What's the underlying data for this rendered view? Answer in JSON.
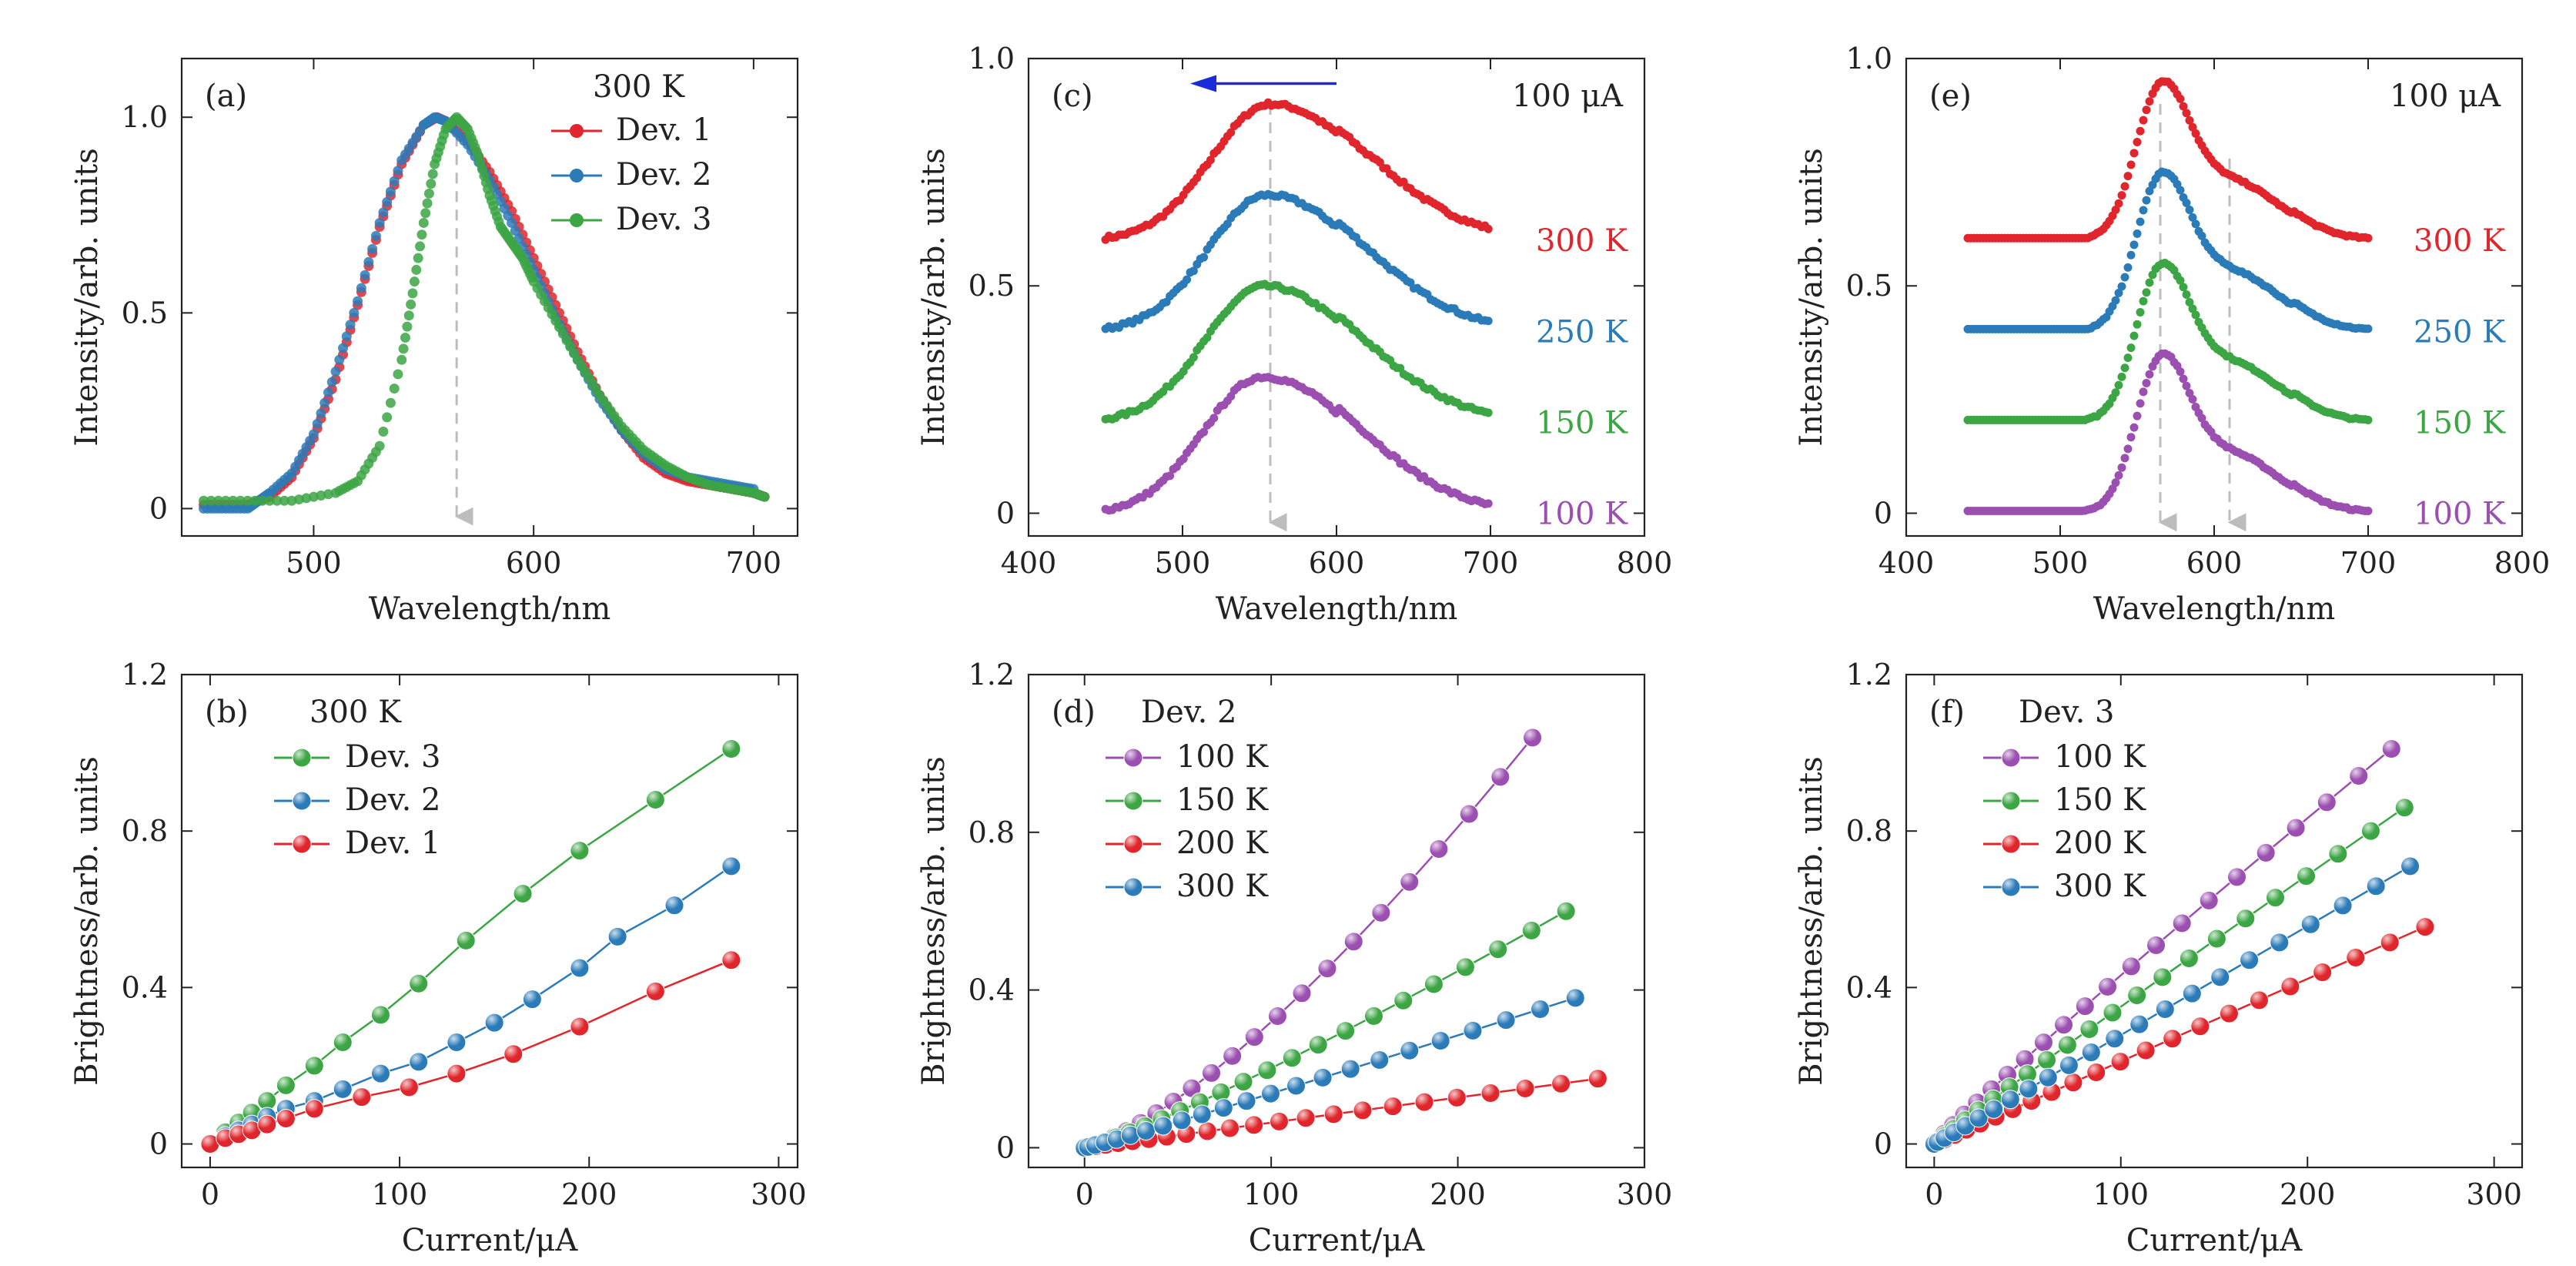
{
  "chart_data": [
    {
      "panel": "(a)",
      "type": "line",
      "xlabel": "Wavelength/nm",
      "ylabel": "Intensity/arb. units",
      "xlim": [
        440,
        720
      ],
      "ylim": [
        -0.07,
        1.15
      ],
      "xticks": [
        "500",
        "600",
        "700"
      ],
      "yticks": [
        "0",
        "0.5",
        "1.0"
      ],
      "legend_title": "300 K",
      "legend_position": "top-right",
      "annotations": [
        "dashed gray arrow at peak wavelength ≈ 565 nm"
      ],
      "series": [
        {
          "name": "Dev. 1",
          "color": "#e0262c",
          "x": [
            450,
            470,
            480,
            490,
            500,
            510,
            520,
            530,
            540,
            550,
            556,
            560,
            570,
            580,
            590,
            600,
            610,
            620,
            630,
            640,
            650,
            660,
            670,
            680,
            690,
            700,
            705
          ],
          "y": [
            0.01,
            0.01,
            0.03,
            0.08,
            0.18,
            0.33,
            0.52,
            0.72,
            0.88,
            0.98,
            1.0,
            0.99,
            0.94,
            0.86,
            0.76,
            0.64,
            0.52,
            0.4,
            0.29,
            0.2,
            0.13,
            0.09,
            0.07,
            0.06,
            0.05,
            0.04,
            0.03
          ]
        },
        {
          "name": "Dev. 2",
          "color": "#2b7bb9",
          "x": [
            450,
            460,
            470,
            475,
            480,
            490,
            500,
            510,
            520,
            530,
            540,
            550,
            555,
            560,
            570,
            580,
            590,
            600,
            610,
            620,
            630,
            640,
            650,
            660,
            670,
            680,
            690,
            700
          ],
          "y": [
            0.0,
            0.0,
            0.0,
            0.02,
            0.04,
            0.09,
            0.19,
            0.35,
            0.53,
            0.73,
            0.89,
            0.98,
            1.0,
            0.99,
            0.93,
            0.84,
            0.73,
            0.61,
            0.49,
            0.38,
            0.28,
            0.2,
            0.14,
            0.1,
            0.08,
            0.07,
            0.06,
            0.05
          ]
        },
        {
          "name": "Dev. 3",
          "color": "#3ca544",
          "x": [
            450,
            470,
            490,
            510,
            520,
            530,
            540,
            545,
            550,
            555,
            560,
            565,
            570,
            575,
            580,
            585,
            590,
            595,
            600,
            610,
            620,
            630,
            640,
            650,
            660,
            670,
            680,
            690,
            700,
            705
          ],
          "y": [
            0.02,
            0.02,
            0.02,
            0.04,
            0.07,
            0.16,
            0.38,
            0.55,
            0.73,
            0.88,
            0.97,
            1.0,
            0.97,
            0.9,
            0.8,
            0.72,
            0.68,
            0.64,
            0.58,
            0.48,
            0.38,
            0.29,
            0.21,
            0.15,
            0.11,
            0.08,
            0.06,
            0.05,
            0.04,
            0.03
          ]
        }
      ]
    },
    {
      "panel": "(c)",
      "type": "line",
      "xlabel": "Wavelength/nm",
      "ylabel": "Intensity/arb. units",
      "xlim": [
        400,
        800
      ],
      "ylim": [
        -0.05,
        1.0
      ],
      "xticks": [
        "400",
        "500",
        "600",
        "700",
        "800"
      ],
      "yticks": [
        "0",
        "0.5",
        "1.0"
      ],
      "corner_label": "100 μA",
      "annotations": [
        "blue arrow pointing left at top",
        "dashed gray arrow at peak ≈ 557 nm"
      ],
      "series": [
        {
          "name": "300 K",
          "color": "#e0262c",
          "offset": 0.6,
          "peak": 0.3,
          "center": 557
        },
        {
          "name": "250 K",
          "color": "#2b7bb9",
          "offset": 0.4,
          "peak": 0.3,
          "center": 555
        },
        {
          "name": "150 K",
          "color": "#3ca544",
          "offset": 0.2,
          "peak": 0.3,
          "center": 553
        },
        {
          "name": "100 K",
          "color": "#9b4fb0",
          "offset": 0.0,
          "peak": 0.3,
          "center": 552
        }
      ]
    },
    {
      "panel": "(e)",
      "type": "line",
      "xlabel": "Wavelength/nm",
      "ylabel": "Intensity/arb. units",
      "xlim": [
        400,
        800
      ],
      "ylim": [
        -0.05,
        1.0
      ],
      "xticks": [
        "400",
        "500",
        "600",
        "700",
        "800"
      ],
      "yticks": [
        "0",
        "0.5",
        "1.0"
      ],
      "corner_label": "100 μA",
      "annotations": [
        "dashed gray arrows at ≈ 565 nm and ≈ 610 nm"
      ],
      "series": [
        {
          "name": "300 K",
          "color": "#e0262c",
          "offset": 0.6
        },
        {
          "name": "250 K",
          "color": "#2b7bb9",
          "offset": 0.4
        },
        {
          "name": "150 K",
          "color": "#3ca544",
          "offset": 0.2
        },
        {
          "name": "100 K",
          "color": "#9b4fb0",
          "offset": 0.0
        }
      ]
    },
    {
      "panel": "(b)",
      "type": "scatter",
      "xlabel": "Current/μA",
      "ylabel": "Brightness/arb. units",
      "xlim": [
        -15,
        310
      ],
      "ylim": [
        -0.06,
        1.2
      ],
      "xticks": [
        "0",
        "100",
        "200",
        "300"
      ],
      "yticks": [
        "0",
        "0.4",
        "0.8",
        "1.2"
      ],
      "legend_title": "300 K",
      "legend_position": "top-left",
      "series": [
        {
          "name": "Dev. 3",
          "color": "#3ca544",
          "x": [
            0,
            8,
            15,
            22,
            30,
            40,
            55,
            70,
            90,
            110,
            135,
            165,
            195,
            235,
            275
          ],
          "y": [
            0,
            0.03,
            0.055,
            0.08,
            0.11,
            0.15,
            0.2,
            0.26,
            0.33,
            0.41,
            0.52,
            0.64,
            0.75,
            0.88,
            1.01
          ]
        },
        {
          "name": "Dev. 2",
          "color": "#2b7bb9",
          "x": [
            0,
            8,
            15,
            22,
            30,
            40,
            55,
            70,
            90,
            110,
            130,
            150,
            170,
            195,
            215,
            245,
            275
          ],
          "y": [
            0,
            0.02,
            0.035,
            0.05,
            0.07,
            0.09,
            0.11,
            0.14,
            0.18,
            0.21,
            0.26,
            0.31,
            0.37,
            0.45,
            0.53,
            0.61,
            0.71
          ]
        },
        {
          "name": "Dev. 1",
          "color": "#e0262c",
          "x": [
            0,
            8,
            15,
            22,
            30,
            40,
            55,
            80,
            105,
            130,
            160,
            195,
            235,
            275
          ],
          "y": [
            0,
            0.015,
            0.025,
            0.035,
            0.05,
            0.065,
            0.09,
            0.12,
            0.145,
            0.18,
            0.23,
            0.3,
            0.39,
            0.47
          ]
        }
      ]
    },
    {
      "panel": "(d)",
      "type": "scatter",
      "xlabel": "Current/μA",
      "ylabel": "Brightness/arb. units",
      "xlim": [
        -30,
        300
      ],
      "ylim": [
        -0.05,
        1.2
      ],
      "xticks": [
        "0",
        "100",
        "200",
        "300"
      ],
      "yticks": [
        "0",
        "0.4",
        "0.8",
        "1.2"
      ],
      "legend_title": "Dev. 2",
      "legend_position": "top-left",
      "series": [
        {
          "name": "100 K",
          "color": "#9b4fb0",
          "kind": "power",
          "xmax": 240,
          "ymax": 1.04,
          "exp": 1.35
        },
        {
          "name": "150 K",
          "color": "#3ca544",
          "kind": "power",
          "xmax": 258,
          "ymax": 0.6,
          "exp": 1.15
        },
        {
          "name": "200 K",
          "color": "#e0262c",
          "kind": "power",
          "xmax": 275,
          "ymax": 0.175,
          "exp": 1.0
        },
        {
          "name": "300 K",
          "color": "#2b7bb9",
          "kind": "power",
          "xmax": 263,
          "ymax": 0.38,
          "exp": 1.05
        }
      ]
    },
    {
      "panel": "(f)",
      "type": "scatter",
      "xlabel": "Current/μA",
      "ylabel": "Brightness/arb. units",
      "xlim": [
        -15,
        315
      ],
      "ylim": [
        -0.06,
        1.2
      ],
      "xticks": [
        "0",
        "100",
        "200",
        "300"
      ],
      "yticks": [
        "0",
        "0.4",
        "0.8",
        "1.2"
      ],
      "legend_title": "Dev. 3",
      "legend_position": "top-left",
      "series": [
        {
          "name": "100 K",
          "color": "#9b4fb0",
          "kind": "power",
          "xmax": 245,
          "ymax": 1.01,
          "exp": 0.95
        },
        {
          "name": "150 K",
          "color": "#3ca544",
          "kind": "power",
          "xmax": 252,
          "ymax": 0.86,
          "exp": 0.97
        },
        {
          "name": "200 K",
          "color": "#e0262c",
          "kind": "power",
          "xmax": 263,
          "ymax": 0.555,
          "exp": 1.0
        },
        {
          "name": "300 K",
          "color": "#2b7bb9",
          "kind": "power",
          "xmax": 255,
          "ymax": 0.71,
          "exp": 1.0
        }
      ]
    }
  ]
}
